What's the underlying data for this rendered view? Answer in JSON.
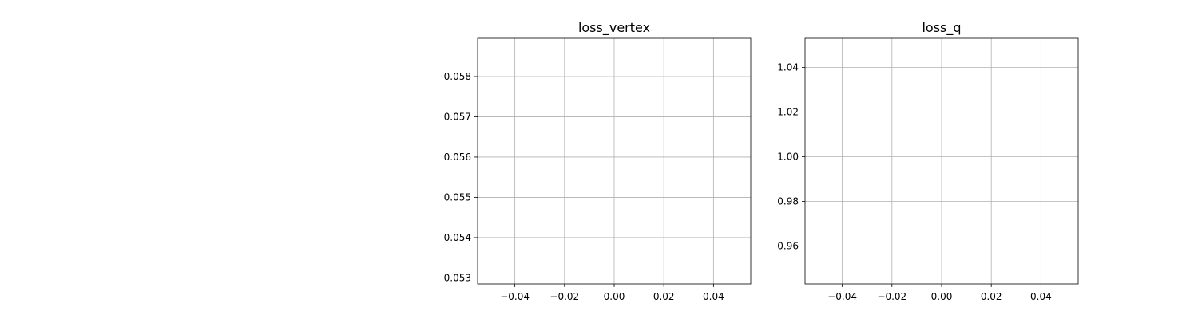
{
  "chart_data": [
    {
      "type": "line",
      "title": "loss_vertex",
      "xlabel": "",
      "ylabel": "",
      "grid": true,
      "series": [],
      "xlim": [
        -0.055,
        0.055
      ],
      "ylim": [
        0.05285,
        0.05895
      ],
      "xticks": [
        -0.04,
        -0.02,
        0.0,
        0.02,
        0.04
      ],
      "xtick_labels": [
        "−0.04",
        "−0.02",
        "0.00",
        "0.02",
        "0.04"
      ],
      "yticks": [
        0.053,
        0.054,
        0.055,
        0.056,
        0.057,
        0.058
      ],
      "ytick_labels": [
        "0.053",
        "0.054",
        "0.055",
        "0.056",
        "0.057",
        "0.058"
      ]
    },
    {
      "type": "line",
      "title": "loss_q",
      "xlabel": "",
      "ylabel": "",
      "grid": true,
      "series": [],
      "xlim": [
        -0.055,
        0.055
      ],
      "ylim": [
        0.943,
        1.053
      ],
      "xticks": [
        -0.04,
        -0.02,
        0.0,
        0.02,
        0.04
      ],
      "xtick_labels": [
        "−0.04",
        "−0.02",
        "0.00",
        "0.02",
        "0.04"
      ],
      "yticks": [
        0.96,
        0.98,
        1.0,
        1.02,
        1.04
      ],
      "ytick_labels": [
        "0.96",
        "0.98",
        "1.00",
        "1.02",
        "1.04"
      ]
    }
  ]
}
